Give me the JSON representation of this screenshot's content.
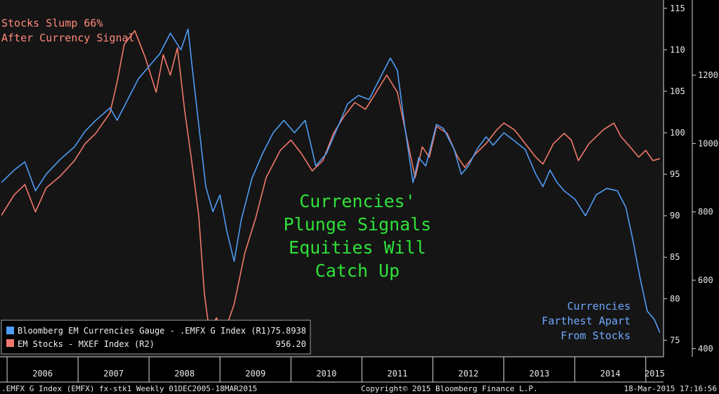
{
  "chart_data": {
    "type": "line",
    "title": "",
    "xlabel": "",
    "ylabel_left": "",
    "ylabel_right": "",
    "xlim": [
      2005.9,
      2015.25
    ],
    "x_ticks": [
      "2006",
      "2007",
      "2008",
      "2009",
      "2010",
      "2011",
      "2012",
      "2013",
      "2014",
      "2015"
    ],
    "axes": {
      "r1": {
        "ylim": [
          73,
          116
        ],
        "ticks": [
          75,
          80,
          85,
          90,
          95,
          100,
          105,
          110,
          115
        ]
      },
      "r2": {
        "ylim": [
          376,
          1420
        ],
        "ticks": [
          400,
          600,
          800,
          1000,
          1200
        ]
      }
    },
    "grid": false,
    "legend_placement": "bottom-left",
    "series": [
      {
        "name": "Bloomberg EM Currencies Gauge - .EMFX G Index (R1)",
        "last_value": "75.8938",
        "axis": "r1",
        "color": "#4f9cf5",
        "points": [
          [
            2005.92,
            94.0
          ],
          [
            2006.1,
            95.5
          ],
          [
            2006.25,
            96.5
          ],
          [
            2006.4,
            93.0
          ],
          [
            2006.55,
            95.0
          ],
          [
            2006.75,
            96.8
          ],
          [
            2006.95,
            98.3
          ],
          [
            2007.1,
            100.2
          ],
          [
            2007.25,
            101.5
          ],
          [
            2007.45,
            103.0
          ],
          [
            2007.55,
            101.5
          ],
          [
            2007.7,
            104.0
          ],
          [
            2007.85,
            106.5
          ],
          [
            2008.0,
            108.0
          ],
          [
            2008.15,
            109.5
          ],
          [
            2008.3,
            112.0
          ],
          [
            2008.45,
            110.0
          ],
          [
            2008.55,
            112.5
          ],
          [
            2008.62,
            107.0
          ],
          [
            2008.72,
            99.5
          ],
          [
            2008.8,
            93.5
          ],
          [
            2008.9,
            90.5
          ],
          [
            2009.0,
            92.5
          ],
          [
            2009.1,
            88.0
          ],
          [
            2009.2,
            84.5
          ],
          [
            2009.3,
            89.5
          ],
          [
            2009.45,
            94.5
          ],
          [
            2009.6,
            97.5
          ],
          [
            2009.75,
            100.0
          ],
          [
            2009.9,
            101.5
          ],
          [
            2010.05,
            100.0
          ],
          [
            2010.2,
            101.5
          ],
          [
            2010.35,
            96.0
          ],
          [
            2010.5,
            97.5
          ],
          [
            2010.65,
            100.5
          ],
          [
            2010.8,
            103.5
          ],
          [
            2010.95,
            104.5
          ],
          [
            2011.1,
            104.0
          ],
          [
            2011.25,
            106.5
          ],
          [
            2011.4,
            109.0
          ],
          [
            2011.5,
            107.5
          ],
          [
            2011.6,
            101.0
          ],
          [
            2011.72,
            94.0
          ],
          [
            2011.8,
            97.0
          ],
          [
            2011.9,
            96.0
          ],
          [
            2012.05,
            101.0
          ],
          [
            2012.15,
            100.5
          ],
          [
            2012.3,
            98.0
          ],
          [
            2012.4,
            95.0
          ],
          [
            2012.5,
            96.0
          ],
          [
            2012.62,
            98.0
          ],
          [
            2012.75,
            99.5
          ],
          [
            2012.85,
            98.5
          ],
          [
            2013.0,
            100.0
          ],
          [
            2013.15,
            99.0
          ],
          [
            2013.3,
            98.0
          ],
          [
            2013.45,
            95.0
          ],
          [
            2013.55,
            93.5
          ],
          [
            2013.65,
            95.5
          ],
          [
            2013.75,
            94.0
          ],
          [
            2013.85,
            93.0
          ],
          [
            2014.0,
            92.0
          ],
          [
            2014.15,
            90.0
          ],
          [
            2014.3,
            92.5
          ],
          [
            2014.45,
            93.3
          ],
          [
            2014.6,
            93.0
          ],
          [
            2014.72,
            91.0
          ],
          [
            2014.82,
            87.0
          ],
          [
            2014.92,
            82.5
          ],
          [
            2015.02,
            78.5
          ],
          [
            2015.12,
            77.5
          ],
          [
            2015.2,
            75.9
          ]
        ]
      },
      {
        "name": "EM Stocks - MXEF Index (R2)",
        "last_value": "956.20",
        "axis": "r2",
        "color": "#f07a6a",
        "points": [
          [
            2005.92,
            790
          ],
          [
            2006.1,
            850
          ],
          [
            2006.25,
            880
          ],
          [
            2006.4,
            800
          ],
          [
            2006.55,
            870
          ],
          [
            2006.75,
            905
          ],
          [
            2006.95,
            950
          ],
          [
            2007.1,
            1000
          ],
          [
            2007.25,
            1030
          ],
          [
            2007.45,
            1090
          ],
          [
            2007.55,
            1180
          ],
          [
            2007.65,
            1290
          ],
          [
            2007.8,
            1330
          ],
          [
            2007.95,
            1250
          ],
          [
            2008.1,
            1150
          ],
          [
            2008.2,
            1260
          ],
          [
            2008.3,
            1200
          ],
          [
            2008.4,
            1280
          ],
          [
            2008.5,
            1100
          ],
          [
            2008.6,
            950
          ],
          [
            2008.7,
            790
          ],
          [
            2008.78,
            560
          ],
          [
            2008.85,
            450
          ],
          [
            2008.95,
            490
          ],
          [
            2009.05,
            440
          ],
          [
            2009.2,
            530
          ],
          [
            2009.35,
            680
          ],
          [
            2009.5,
            780
          ],
          [
            2009.65,
            900
          ],
          [
            2009.85,
            980
          ],
          [
            2010.0,
            1010
          ],
          [
            2010.15,
            970
          ],
          [
            2010.3,
            920
          ],
          [
            2010.45,
            950
          ],
          [
            2010.6,
            1030
          ],
          [
            2010.75,
            1080
          ],
          [
            2010.9,
            1120
          ],
          [
            2011.05,
            1100
          ],
          [
            2011.2,
            1150
          ],
          [
            2011.35,
            1200
          ],
          [
            2011.5,
            1150
          ],
          [
            2011.65,
            1000
          ],
          [
            2011.75,
            900
          ],
          [
            2011.85,
            990
          ],
          [
            2011.95,
            960
          ],
          [
            2012.05,
            1050
          ],
          [
            2012.2,
            1030
          ],
          [
            2012.35,
            960
          ],
          [
            2012.45,
            930
          ],
          [
            2012.6,
            970
          ],
          [
            2012.75,
            1000
          ],
          [
            2012.9,
            1040
          ],
          [
            2013.0,
            1060
          ],
          [
            2013.15,
            1040
          ],
          [
            2013.3,
            1000
          ],
          [
            2013.45,
            960
          ],
          [
            2013.55,
            940
          ],
          [
            2013.7,
            1000
          ],
          [
            2013.85,
            1030
          ],
          [
            2013.95,
            1010
          ],
          [
            2014.05,
            950
          ],
          [
            2014.2,
            1000
          ],
          [
            2014.4,
            1040
          ],
          [
            2014.55,
            1060
          ],
          [
            2014.65,
            1020
          ],
          [
            2014.78,
            990
          ],
          [
            2014.9,
            960
          ],
          [
            2015.0,
            980
          ],
          [
            2015.1,
            950
          ],
          [
            2015.2,
            956
          ]
        ]
      }
    ]
  },
  "annotations": {
    "top_left": [
      "Stocks Slump 66%",
      "After Currency Signal"
    ],
    "center": [
      "Currencies'",
      "Plunge Signals",
      "Equities Will",
      "Catch Up"
    ],
    "bottom_right": [
      "Currencies",
      "Farthest Apart",
      "From Stocks"
    ]
  },
  "footer": {
    "left": ".EMFX G Index (EMFX) fx-stk1  Weekly 01DEC2005-18MAR2015",
    "center": "Copyright© 2015 Bloomberg Finance L.P.",
    "right": "18-Mar-2015 17:16:56"
  },
  "colors": {
    "background": "#000000",
    "plot_bg": "#151515",
    "axis": "#d8d8d8",
    "currency_line": "#4f9cf5",
    "stocks_line": "#f07a6a",
    "center_annotation": "#2fe23a"
  }
}
